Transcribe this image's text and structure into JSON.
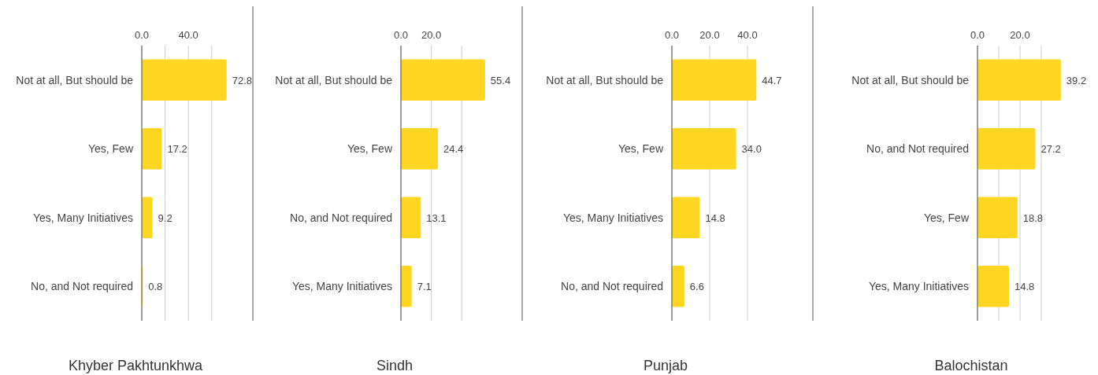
{
  "chart_data": [
    {
      "type": "bar",
      "orientation": "horizontal",
      "title": "Khyber Pakhtunkhwa",
      "categories": [
        "Not at all, But should be",
        "Yes, Few",
        "Yes, Many Initiatives",
        "No, and Not required"
      ],
      "values": [
        72.8,
        17.2,
        9.2,
        0.8
      ],
      "value_labels": [
        "72.8",
        "17.2",
        "9.2",
        "0.8"
      ],
      "color": "#fed520",
      "xlim": [
        0,
        73
      ],
      "xticks": [
        {
          "value": 0,
          "label": "0.0"
        },
        {
          "value": 20,
          "label": null
        },
        {
          "value": 40,
          "label": "40.0"
        },
        {
          "value": 60,
          "label": null
        }
      ],
      "grid": "x"
    },
    {
      "type": "bar",
      "orientation": "horizontal",
      "title": "Sindh",
      "categories": [
        "Not at all, But should be",
        "Yes, Few",
        "No, and Not required",
        "Yes, Many Initiatives"
      ],
      "values": [
        55.4,
        24.4,
        13.1,
        7.1
      ],
      "value_labels": [
        "55.4",
        "24.4",
        "13.1",
        "7.1"
      ],
      "color": "#fed520",
      "xlim": [
        0,
        56
      ],
      "xticks": [
        {
          "value": 0,
          "label": "0.0"
        },
        {
          "value": 20,
          "label": "20.0"
        },
        {
          "value": 40,
          "label": null
        }
      ],
      "grid": "x"
    },
    {
      "type": "bar",
      "orientation": "horizontal",
      "title": "Punjab",
      "categories": [
        "Not at all, But should be",
        "Yes, Few",
        "Yes, Many Initiatives",
        "No, and Not required"
      ],
      "values": [
        44.7,
        34.0,
        14.8,
        6.6
      ],
      "value_labels": [
        "44.7",
        "34.0",
        "14.8",
        "6.6"
      ],
      "color": "#fed520",
      "xlim": [
        0,
        45
      ],
      "xticks": [
        {
          "value": 0,
          "label": "0.0"
        },
        {
          "value": 20,
          "label": "20.0"
        },
        {
          "value": 40,
          "label": "40.0"
        }
      ],
      "grid": "x"
    },
    {
      "type": "bar",
      "orientation": "horizontal",
      "title": "Balochistan",
      "categories": [
        "Not at all, But should be",
        "No, and Not required",
        "Yes, Few",
        "Yes, Many Initiatives"
      ],
      "values": [
        39.2,
        27.2,
        18.8,
        14.8
      ],
      "value_labels": [
        "39.2",
        "27.2",
        "18.8",
        "14.8"
      ],
      "color": "#fed520",
      "xlim": [
        0,
        40
      ],
      "xticks": [
        {
          "value": 0,
          "label": "0.0"
        },
        {
          "value": 10,
          "label": null
        },
        {
          "value": 20,
          "label": "20.0"
        },
        {
          "value": 30,
          "label": null
        }
      ],
      "grid": "x"
    }
  ]
}
